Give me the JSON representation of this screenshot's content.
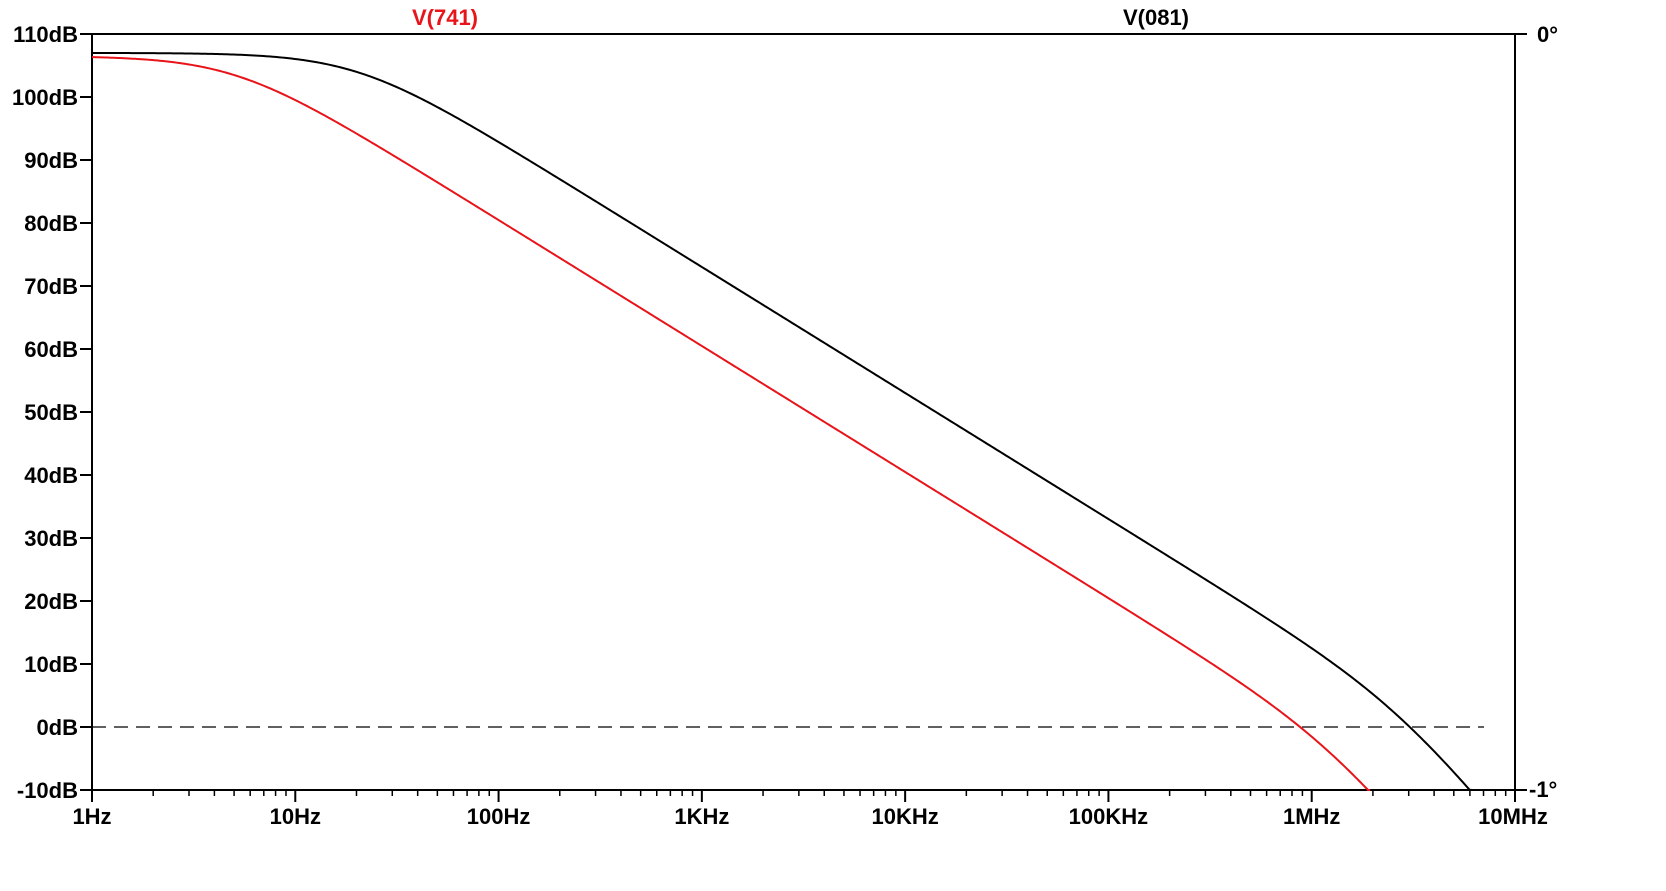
{
  "colors": {
    "v741": "#e8141a",
    "v081": "#000000",
    "axis": "#000000",
    "zero_line": "#000000",
    "background": "#ffffff"
  },
  "chart_data": {
    "type": "line",
    "title": "",
    "xlabel": "",
    "ylabel": "",
    "x_scale": "log",
    "xlim_hz": [
      1,
      10000000
    ],
    "ylim_db": [
      -10,
      110
    ],
    "right_axis": {
      "top": "0°",
      "bottom": "-1°"
    },
    "x_ticks": [
      {
        "value": 1,
        "label": "1Hz"
      },
      {
        "value": 10,
        "label": "10Hz"
      },
      {
        "value": 100,
        "label": "100Hz"
      },
      {
        "value": 1000,
        "label": "1KHz"
      },
      {
        "value": 10000,
        "label": "10KHz"
      },
      {
        "value": 100000,
        "label": "100KHz"
      },
      {
        "value": 1000000,
        "label": "1MHz"
      },
      {
        "value": 10000000,
        "label": "10MHz"
      }
    ],
    "y_ticks": [
      {
        "value": 110,
        "label": "110dB"
      },
      {
        "value": 100,
        "label": "100dB"
      },
      {
        "value": 90,
        "label": "90dB"
      },
      {
        "value": 80,
        "label": "80dB"
      },
      {
        "value": 70,
        "label": "70dB"
      },
      {
        "value": 60,
        "label": "60dB"
      },
      {
        "value": 50,
        "label": "50dB"
      },
      {
        "value": 40,
        "label": "40dB"
      },
      {
        "value": 30,
        "label": "30dB"
      },
      {
        "value": 20,
        "label": "20dB"
      },
      {
        "value": 10,
        "label": "10dB"
      },
      {
        "value": 0,
        "label": "0dB"
      },
      {
        "value": -10,
        "label": "-10dB"
      }
    ],
    "reference_line": {
      "value_db": 0,
      "style": "dashed"
    },
    "series": [
      {
        "name": "V(741)",
        "color_key": "v741",
        "model": {
          "a0_db": 106.5,
          "f1_hz": 5,
          "f2_hz": 1300000
        },
        "x_end_hz": 2300000
      },
      {
        "name": "V(081)",
        "color_key": "v081",
        "model": {
          "a0_db": 107,
          "f1_hz": 20,
          "f2_hz": 2800000
        },
        "x_end_hz": 7000000
      }
    ]
  }
}
